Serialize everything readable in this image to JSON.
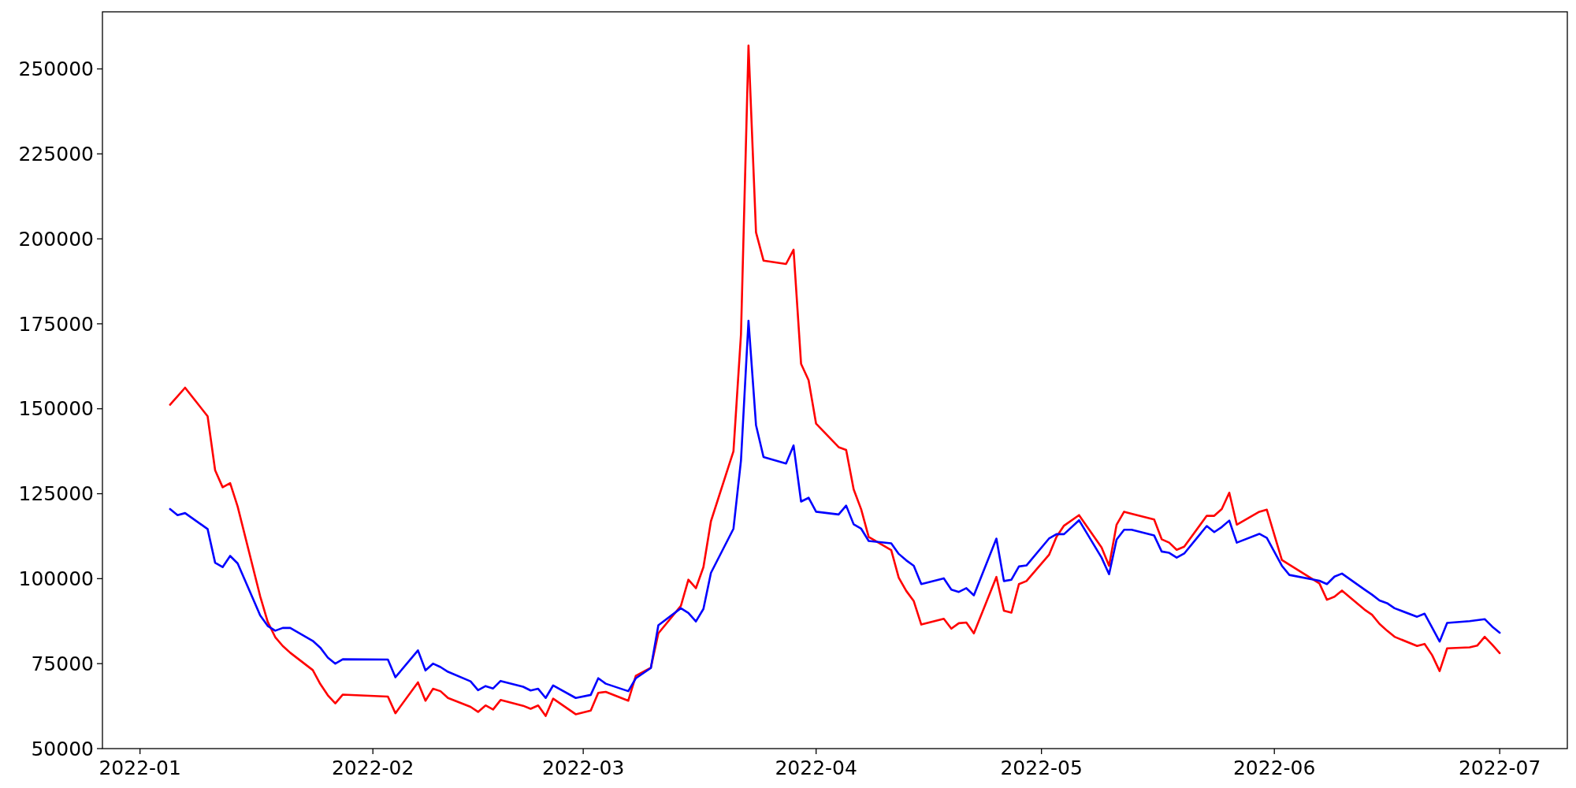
{
  "chart_data": {
    "type": "line",
    "x": [
      "2022-01-05",
      "2022-01-06",
      "2022-01-07",
      "2022-01-10",
      "2022-01-11",
      "2022-01-12",
      "2022-01-13",
      "2022-01-14",
      "2022-01-17",
      "2022-01-18",
      "2022-01-19",
      "2022-01-20",
      "2022-01-21",
      "2022-01-24",
      "2022-01-25",
      "2022-01-26",
      "2022-01-27",
      "2022-01-28",
      "2022-02-03",
      "2022-02-04",
      "2022-02-07",
      "2022-02-08",
      "2022-02-09",
      "2022-02-10",
      "2022-02-11",
      "2022-02-14",
      "2022-02-15",
      "2022-02-16",
      "2022-02-17",
      "2022-02-18",
      "2022-02-21",
      "2022-02-22",
      "2022-02-23",
      "2022-02-24",
      "2022-02-25",
      "2022-02-28",
      "2022-03-02",
      "2022-03-03",
      "2022-03-04",
      "2022-03-07",
      "2022-03-08",
      "2022-03-10",
      "2022-03-11",
      "2022-03-14",
      "2022-03-15",
      "2022-03-16",
      "2022-03-17",
      "2022-03-18",
      "2022-03-21",
      "2022-03-22",
      "2022-03-23",
      "2022-03-24",
      "2022-03-25",
      "2022-03-28",
      "2022-03-29",
      "2022-03-30",
      "2022-03-31",
      "2022-04-01",
      "2022-04-04",
      "2022-04-05",
      "2022-04-06",
      "2022-04-07",
      "2022-04-08",
      "2022-04-11",
      "2022-04-12",
      "2022-04-13",
      "2022-04-14",
      "2022-04-15",
      "2022-04-18",
      "2022-04-19",
      "2022-04-20",
      "2022-04-21",
      "2022-04-22",
      "2022-04-25",
      "2022-04-26",
      "2022-04-27",
      "2022-04-28",
      "2022-04-29",
      "2022-05-02",
      "2022-05-03",
      "2022-05-04",
      "2022-05-06",
      "2022-05-09",
      "2022-05-10",
      "2022-05-11",
      "2022-05-12",
      "2022-05-13",
      "2022-05-16",
      "2022-05-17",
      "2022-05-18",
      "2022-05-19",
      "2022-05-20",
      "2022-05-23",
      "2022-05-24",
      "2022-05-25",
      "2022-05-26",
      "2022-05-27",
      "2022-05-30",
      "2022-05-31",
      "2022-06-02",
      "2022-06-03",
      "2022-06-07",
      "2022-06-08",
      "2022-06-09",
      "2022-06-10",
      "2022-06-13",
      "2022-06-14",
      "2022-06-15",
      "2022-06-16",
      "2022-06-17",
      "2022-06-20",
      "2022-06-21",
      "2022-06-22",
      "2022-06-23",
      "2022-06-24",
      "2022-06-27",
      "2022-06-28",
      "2022-06-29",
      "2022-06-30",
      "2022-07-01"
    ],
    "series": [
      {
        "color": "#ff0000",
        "values": [
          151200,
          153700,
          156200,
          147800,
          131900,
          126900,
          128100,
          121200,
          94800,
          87300,
          82800,
          80200,
          78200,
          73100,
          69000,
          65700,
          63300,
          65900,
          65300,
          60400,
          69500,
          64100,
          67600,
          66900,
          64900,
          62300,
          60800,
          62700,
          61500,
          64300,
          62600,
          61700,
          62700,
          59600,
          64700,
          60100,
          61200,
          66400,
          66700,
          64100,
          71400,
          73800,
          83900,
          92000,
          99700,
          97200,
          103400,
          116900,
          137500,
          171900,
          256900,
          201900,
          193600,
          192600,
          196800,
          163200,
          158400,
          145600,
          138700,
          137900,
          126300,
          120400,
          112300,
          108400,
          100300,
          96400,
          93400,
          86500,
          88200,
          85300,
          86900,
          87100,
          83900,
          100500,
          90600,
          90000,
          98400,
          99300,
          107000,
          112300,
          115600,
          118700,
          109200,
          103800,
          115900,
          119700,
          119100,
          117400,
          111600,
          110600,
          108500,
          109400,
          118500,
          118500,
          120500,
          125300,
          115900,
          119700,
          120300,
          105500,
          104100,
          98600,
          93800,
          94700,
          96500,
          90900,
          89400,
          86700,
          84700,
          82900,
          80200,
          80800,
          77500,
          72800,
          79500,
          79800,
          80300,
          82900,
          80600,
          78100
        ]
      },
      {
        "color": "#0000ff",
        "values": [
          120500,
          118700,
          119300,
          114600,
          104700,
          103400,
          106700,
          104500,
          89200,
          86100,
          84700,
          85500,
          85500,
          81700,
          79700,
          76800,
          75000,
          76300,
          76200,
          71000,
          78900,
          73000,
          75000,
          74000,
          72600,
          69800,
          67200,
          68400,
          67700,
          69900,
          68200,
          67100,
          67600,
          64900,
          68600,
          64900,
          65800,
          70700,
          69100,
          66900,
          70700,
          73700,
          86300,
          91300,
          89900,
          87400,
          91100,
          101700,
          114700,
          134800,
          175900,
          145200,
          135800,
          133900,
          139200,
          122700,
          123800,
          119700,
          118900,
          121500,
          116000,
          114700,
          111100,
          110400,
          107300,
          105400,
          103800,
          98400,
          100100,
          96800,
          96100,
          97200,
          95100,
          111800,
          99300,
          99700,
          103600,
          103900,
          111800,
          113100,
          113100,
          117200,
          106200,
          101300,
          111500,
          114400,
          114400,
          112700,
          108000,
          107600,
          106200,
          107400,
          115500,
          113700,
          115200,
          117100,
          110600,
          113200,
          112000,
          103800,
          101100,
          99400,
          98400,
          100600,
          101500,
          96800,
          95300,
          93600,
          92800,
          91300,
          88800,
          89700,
          85600,
          81500,
          87000,
          87500,
          87800,
          88100,
          85900,
          84100
        ]
      }
    ],
    "xlim": [
      "2021-12-27",
      "2022-07-10"
    ],
    "ylim": [
      50000,
      266800
    ],
    "xticks": [
      {
        "value": "2022-01-01",
        "label": "2022-01"
      },
      {
        "value": "2022-02-01",
        "label": "2022-02"
      },
      {
        "value": "2022-03-01",
        "label": "2022-03"
      },
      {
        "value": "2022-04-01",
        "label": "2022-04"
      },
      {
        "value": "2022-05-01",
        "label": "2022-05"
      },
      {
        "value": "2022-06-01",
        "label": "2022-06"
      },
      {
        "value": "2022-07-01",
        "label": "2022-07"
      }
    ],
    "yticks": [
      50000,
      75000,
      100000,
      125000,
      150000,
      175000,
      200000,
      225000,
      250000
    ]
  }
}
